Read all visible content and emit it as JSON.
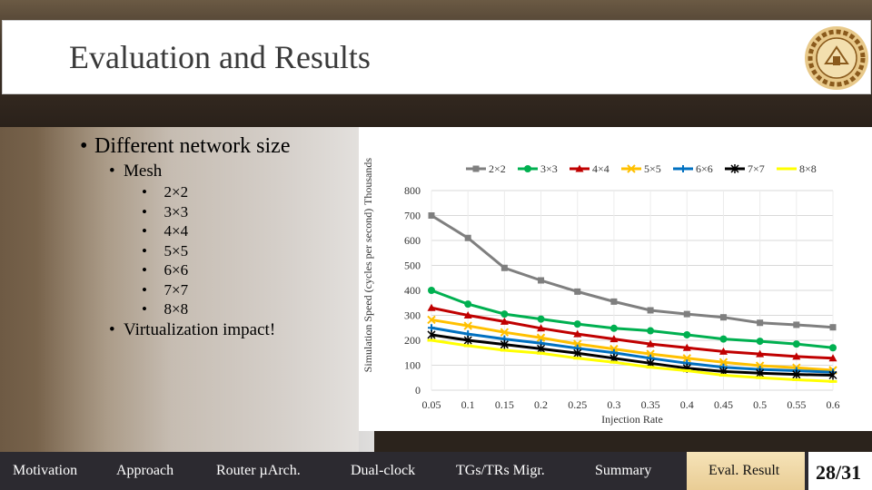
{
  "slide": {
    "title": "Evaluation and Results",
    "page": "28/31"
  },
  "bullets": {
    "level1": "Different network size",
    "mesh": "Mesh",
    "sizes": [
      "2×2",
      "3×3",
      "4×4",
      "5×5",
      "6×6",
      "7×7",
      "8×8"
    ],
    "virtualization": "Virtualization impact!"
  },
  "nav": {
    "items": [
      "Motivation",
      "Approach",
      "Router µArch.",
      "Dual-clock",
      "TGs/TRs Migr.",
      "Summary",
      "Eval. Result"
    ],
    "active": "Eval. Result"
  },
  "chart_data": {
    "type": "line",
    "ylabel": "Simulation Speed (cycles per second)",
    "yunit": "Thousands",
    "xlabel": "Injection Rate",
    "x": [
      0.05,
      0.1,
      0.15,
      0.2,
      0.25,
      0.3,
      0.35,
      0.4,
      0.45,
      0.5,
      0.55,
      0.6
    ],
    "ylim": [
      0,
      800
    ],
    "yticks": [
      0,
      100,
      200,
      300,
      400,
      500,
      600,
      700,
      800
    ],
    "grid": true,
    "legend": "top",
    "series": [
      {
        "name": "2×2",
        "color": "#7f7f7f",
        "marker": "square",
        "values": [
          700,
          610,
          490,
          440,
          395,
          355,
          320,
          305,
          292,
          270,
          262,
          252
        ]
      },
      {
        "name": "3×3",
        "color": "#00b050",
        "marker": "circle",
        "values": [
          400,
          345,
          305,
          285,
          265,
          248,
          238,
          222,
          205,
          196,
          185,
          170
        ]
      },
      {
        "name": "4×4",
        "color": "#c00000",
        "marker": "triangle",
        "values": [
          330,
          300,
          275,
          248,
          225,
          205,
          185,
          170,
          155,
          145,
          135,
          128
        ]
      },
      {
        "name": "5×5",
        "color": "#ffc000",
        "marker": "cross",
        "values": [
          282,
          258,
          232,
          210,
          185,
          165,
          145,
          128,
          112,
          98,
          90,
          80
        ]
      },
      {
        "name": "6×6",
        "color": "#0070c0",
        "marker": "plus",
        "values": [
          250,
          225,
          205,
          188,
          168,
          150,
          128,
          108,
          92,
          83,
          78,
          72
        ]
      },
      {
        "name": "7×7",
        "color": "#000000",
        "marker": "star",
        "values": [
          222,
          200,
          183,
          166,
          148,
          128,
          108,
          88,
          75,
          68,
          63,
          60
        ]
      },
      {
        "name": "8×8",
        "color": "#ffff00",
        "marker": "dash",
        "values": [
          200,
          178,
          160,
          148,
          128,
          112,
          92,
          78,
          60,
          50,
          42,
          35
        ]
      }
    ]
  }
}
